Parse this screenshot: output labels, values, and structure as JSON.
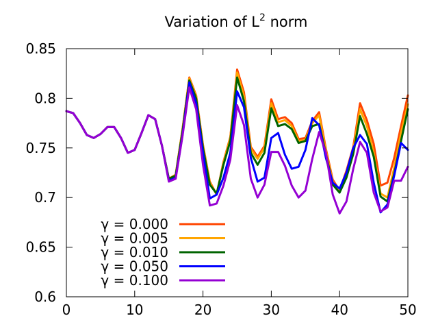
{
  "chart_data": {
    "type": "line",
    "title_main": "Variation of L",
    "title_sup": "2",
    "title_rest": " norm",
    "xlabel": "",
    "ylabel": "",
    "xlim": [
      0,
      50
    ],
    "ylim": [
      0.6,
      0.85
    ],
    "x_ticks": [
      0,
      10,
      20,
      30,
      40,
      50
    ],
    "x_tick_labels": [
      "0",
      "10",
      "20",
      "30",
      "40",
      "50"
    ],
    "y_ticks": [
      0.6,
      0.65,
      0.7,
      0.75,
      0.8,
      0.85
    ],
    "y_tick_labels": [
      "0.6",
      "0.65",
      "0.7",
      "0.75",
      "0.8",
      "0.85"
    ],
    "grid": false,
    "legend_position": "bottom-left",
    "series": [
      {
        "name": "γ = 0.000",
        "color": "#ff4500",
        "points": [
          [
            0,
            0.787
          ],
          [
            1,
            0.785
          ],
          [
            2,
            0.775
          ],
          [
            3,
            0.763
          ],
          [
            4,
            0.76
          ],
          [
            5,
            0.764
          ],
          [
            6,
            0.771
          ],
          [
            7,
            0.771
          ],
          [
            8,
            0.76
          ],
          [
            9,
            0.745
          ],
          [
            10,
            0.748
          ],
          [
            11,
            0.765
          ],
          [
            12,
            0.783
          ],
          [
            13,
            0.779
          ],
          [
            14,
            0.752
          ],
          [
            15,
            0.719
          ],
          [
            16,
            0.723
          ],
          [
            17,
            0.769
          ],
          [
            18,
            0.821
          ],
          [
            19,
            0.803
          ],
          [
            20,
            0.753
          ],
          [
            21,
            0.716
          ],
          [
            22,
            0.703
          ],
          [
            23,
            0.736
          ],
          [
            24,
            0.761
          ],
          [
            25,
            0.829
          ],
          [
            26,
            0.806
          ],
          [
            27,
            0.751
          ],
          [
            28,
            0.741
          ],
          [
            29,
            0.752
          ],
          [
            30,
            0.799
          ],
          [
            31,
            0.779
          ],
          [
            32,
            0.781
          ],
          [
            33,
            0.775
          ],
          [
            34,
            0.759
          ],
          [
            35,
            0.76
          ],
          [
            36,
            0.777
          ],
          [
            37,
            0.786
          ],
          [
            38,
            0.749
          ],
          [
            39,
            0.718
          ],
          [
            40,
            0.707
          ],
          [
            41,
            0.727
          ],
          [
            42,
            0.751
          ],
          [
            43,
            0.795
          ],
          [
            44,
            0.778
          ],
          [
            45,
            0.754
          ],
          [
            46,
            0.712
          ],
          [
            47,
            0.715
          ],
          [
            48,
            0.74
          ],
          [
            49,
            0.772
          ],
          [
            50,
            0.803
          ]
        ]
      },
      {
        "name": "γ = 0.005",
        "color": "#ffa500",
        "points": [
          [
            0,
            0.787
          ],
          [
            1,
            0.785
          ],
          [
            2,
            0.775
          ],
          [
            3,
            0.763
          ],
          [
            4,
            0.76
          ],
          [
            5,
            0.764
          ],
          [
            6,
            0.771
          ],
          [
            7,
            0.771
          ],
          [
            8,
            0.76
          ],
          [
            9,
            0.745
          ],
          [
            10,
            0.748
          ],
          [
            11,
            0.765
          ],
          [
            12,
            0.783
          ],
          [
            13,
            0.779
          ],
          [
            14,
            0.752
          ],
          [
            15,
            0.719
          ],
          [
            16,
            0.723
          ],
          [
            17,
            0.769
          ],
          [
            18,
            0.82
          ],
          [
            19,
            0.802
          ],
          [
            20,
            0.752
          ],
          [
            21,
            0.715
          ],
          [
            22,
            0.703
          ],
          [
            23,
            0.735
          ],
          [
            24,
            0.76
          ],
          [
            25,
            0.826
          ],
          [
            26,
            0.802
          ],
          [
            27,
            0.749
          ],
          [
            28,
            0.739
          ],
          [
            29,
            0.75
          ],
          [
            30,
            0.795
          ],
          [
            31,
            0.776
          ],
          [
            32,
            0.778
          ],
          [
            33,
            0.772
          ],
          [
            34,
            0.757
          ],
          [
            35,
            0.758
          ],
          [
            36,
            0.775
          ],
          [
            37,
            0.783
          ],
          [
            38,
            0.747
          ],
          [
            39,
            0.716
          ],
          [
            40,
            0.706
          ],
          [
            41,
            0.724
          ],
          [
            42,
            0.748
          ],
          [
            43,
            0.789
          ],
          [
            44,
            0.772
          ],
          [
            45,
            0.745
          ],
          [
            46,
            0.704
          ],
          [
            47,
            0.7
          ],
          [
            48,
            0.73
          ],
          [
            49,
            0.765
          ],
          [
            50,
            0.794
          ]
        ]
      },
      {
        "name": "γ = 0.010",
        "color": "#006400",
        "points": [
          [
            0,
            0.787
          ],
          [
            1,
            0.785
          ],
          [
            2,
            0.775
          ],
          [
            3,
            0.763
          ],
          [
            4,
            0.76
          ],
          [
            5,
            0.764
          ],
          [
            6,
            0.771
          ],
          [
            7,
            0.771
          ],
          [
            8,
            0.76
          ],
          [
            9,
            0.745
          ],
          [
            10,
            0.748
          ],
          [
            11,
            0.765
          ],
          [
            12,
            0.783
          ],
          [
            13,
            0.779
          ],
          [
            14,
            0.752
          ],
          [
            15,
            0.719
          ],
          [
            16,
            0.722
          ],
          [
            17,
            0.767
          ],
          [
            18,
            0.818
          ],
          [
            19,
            0.8
          ],
          [
            20,
            0.75
          ],
          [
            21,
            0.713
          ],
          [
            22,
            0.704
          ],
          [
            23,
            0.733
          ],
          [
            24,
            0.757
          ],
          [
            25,
            0.821
          ],
          [
            26,
            0.797
          ],
          [
            27,
            0.745
          ],
          [
            28,
            0.733
          ],
          [
            29,
            0.745
          ],
          [
            30,
            0.79
          ],
          [
            31,
            0.772
          ],
          [
            32,
            0.774
          ],
          [
            33,
            0.769
          ],
          [
            34,
            0.755
          ],
          [
            35,
            0.757
          ],
          [
            36,
            0.772
          ],
          [
            37,
            0.774
          ],
          [
            38,
            0.744
          ],
          [
            39,
            0.713
          ],
          [
            40,
            0.705
          ],
          [
            41,
            0.72
          ],
          [
            42,
            0.744
          ],
          [
            43,
            0.782
          ],
          [
            44,
            0.764
          ],
          [
            45,
            0.741
          ],
          [
            46,
            0.701
          ],
          [
            47,
            0.696
          ],
          [
            48,
            0.724
          ],
          [
            49,
            0.757
          ],
          [
            50,
            0.789
          ]
        ]
      },
      {
        "name": "γ = 0.050",
        "color": "#0000ff",
        "points": [
          [
            0,
            0.787
          ],
          [
            1,
            0.785
          ],
          [
            2,
            0.775
          ],
          [
            3,
            0.763
          ],
          [
            4,
            0.76
          ],
          [
            5,
            0.764
          ],
          [
            6,
            0.771
          ],
          [
            7,
            0.771
          ],
          [
            8,
            0.76
          ],
          [
            9,
            0.745
          ],
          [
            10,
            0.748
          ],
          [
            11,
            0.765
          ],
          [
            12,
            0.783
          ],
          [
            13,
            0.779
          ],
          [
            14,
            0.752
          ],
          [
            15,
            0.717
          ],
          [
            16,
            0.72
          ],
          [
            17,
            0.763
          ],
          [
            18,
            0.816
          ],
          [
            19,
            0.795
          ],
          [
            20,
            0.745
          ],
          [
            21,
            0.699
          ],
          [
            22,
            0.703
          ],
          [
            23,
            0.72
          ],
          [
            24,
            0.745
          ],
          [
            25,
            0.807
          ],
          [
            26,
            0.791
          ],
          [
            27,
            0.74
          ],
          [
            28,
            0.716
          ],
          [
            29,
            0.72
          ],
          [
            30,
            0.76
          ],
          [
            31,
            0.765
          ],
          [
            32,
            0.743
          ],
          [
            33,
            0.729
          ],
          [
            34,
            0.731
          ],
          [
            35,
            0.748
          ],
          [
            36,
            0.78
          ],
          [
            37,
            0.773
          ],
          [
            38,
            0.74
          ],
          [
            39,
            0.715
          ],
          [
            40,
            0.709
          ],
          [
            41,
            0.725
          ],
          [
            42,
            0.75
          ],
          [
            43,
            0.763
          ],
          [
            44,
            0.754
          ],
          [
            45,
            0.715
          ],
          [
            46,
            0.685
          ],
          [
            47,
            0.693
          ],
          [
            48,
            0.722
          ],
          [
            49,
            0.755
          ],
          [
            50,
            0.748
          ]
        ]
      },
      {
        "name": "γ = 0.100",
        "color": "#9400d3",
        "points": [
          [
            0,
            0.787
          ],
          [
            1,
            0.785
          ],
          [
            2,
            0.775
          ],
          [
            3,
            0.763
          ],
          [
            4,
            0.76
          ],
          [
            5,
            0.764
          ],
          [
            6,
            0.771
          ],
          [
            7,
            0.771
          ],
          [
            8,
            0.76
          ],
          [
            9,
            0.745
          ],
          [
            10,
            0.748
          ],
          [
            11,
            0.765
          ],
          [
            12,
            0.783
          ],
          [
            13,
            0.779
          ],
          [
            14,
            0.752
          ],
          [
            15,
            0.716
          ],
          [
            16,
            0.719
          ],
          [
            17,
            0.762
          ],
          [
            18,
            0.811
          ],
          [
            19,
            0.789
          ],
          [
            20,
            0.733
          ],
          [
            21,
            0.692
          ],
          [
            22,
            0.694
          ],
          [
            23,
            0.712
          ],
          [
            24,
            0.738
          ],
          [
            25,
            0.793
          ],
          [
            26,
            0.773
          ],
          [
            27,
            0.719
          ],
          [
            28,
            0.7
          ],
          [
            29,
            0.713
          ],
          [
            30,
            0.746
          ],
          [
            31,
            0.746
          ],
          [
            32,
            0.732
          ],
          [
            33,
            0.712
          ],
          [
            34,
            0.7
          ],
          [
            35,
            0.707
          ],
          [
            36,
            0.739
          ],
          [
            37,
            0.766
          ],
          [
            38,
            0.745
          ],
          [
            39,
            0.703
          ],
          [
            40,
            0.684
          ],
          [
            41,
            0.696
          ],
          [
            42,
            0.729
          ],
          [
            43,
            0.756
          ],
          [
            44,
            0.745
          ],
          [
            45,
            0.705
          ],
          [
            46,
            0.686
          ],
          [
            47,
            0.69
          ],
          [
            48,
            0.717
          ],
          [
            49,
            0.717
          ],
          [
            50,
            0.731
          ]
        ]
      }
    ]
  }
}
